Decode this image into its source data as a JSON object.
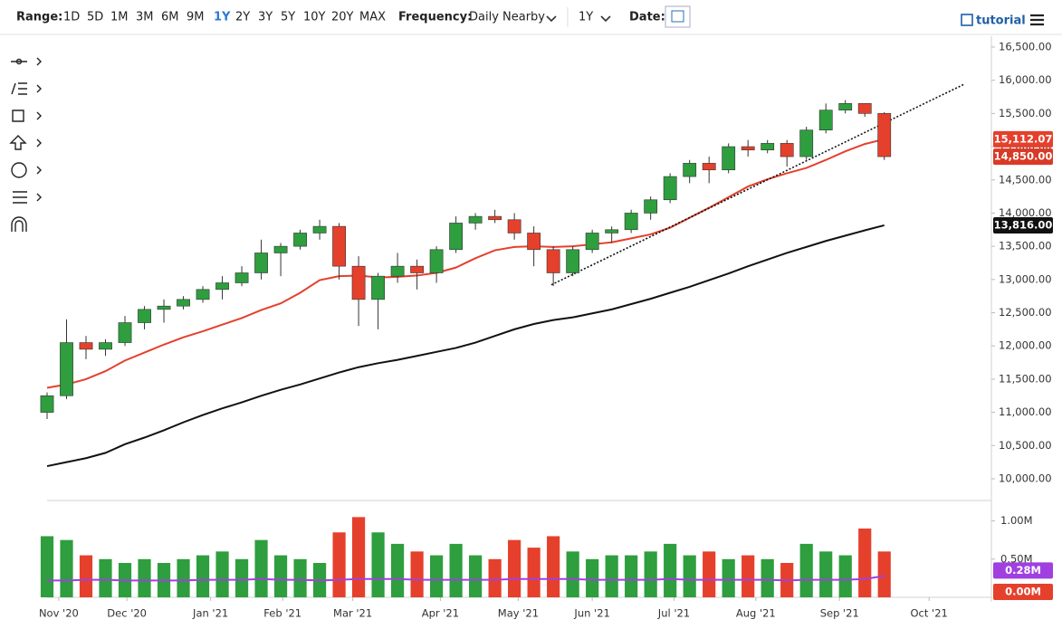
{
  "toolbar": {
    "range_label": "Range:",
    "ranges": [
      "1D",
      "5D",
      "1M",
      "3M",
      "6M",
      "9M",
      "1Y",
      "2Y",
      "3Y",
      "5Y",
      "10Y",
      "20Y",
      "MAX"
    ],
    "active_range": 6,
    "frequency_label": "Frequency:",
    "frequency": "Daily Nearby",
    "period": "1Y",
    "date_label": "Date:",
    "tutorial": "tutorial"
  },
  "chart_data": {
    "type": "candlestick",
    "x": [
      0,
      1,
      2,
      3,
      4,
      5,
      6,
      7,
      8,
      9,
      10,
      11,
      12,
      13,
      14,
      15,
      16,
      17,
      18,
      19,
      20,
      21,
      22,
      23,
      24,
      25,
      26,
      27,
      28,
      29,
      30,
      31,
      32,
      33,
      34,
      35,
      36,
      37,
      38,
      39,
      40,
      41,
      42,
      43
    ],
    "open": [
      11000,
      11250,
      12050,
      11950,
      12050,
      12350,
      12550,
      12600,
      12700,
      12850,
      12950,
      13100,
      13400,
      13500,
      13700,
      13800,
      13200,
      12700,
      13050,
      13200,
      13100,
      13450,
      13850,
      13950,
      13900,
      13700,
      13450,
      13100,
      13450,
      13700,
      13750,
      14000,
      14200,
      14550,
      14750,
      14650,
      15000,
      14950,
      15050,
      14850,
      15250,
      15550,
      15650,
      15500
    ],
    "high": [
      11300,
      12400,
      12150,
      12100,
      12450,
      12600,
      12700,
      12750,
      12900,
      13050,
      13200,
      13600,
      13550,
      13750,
      13900,
      13850,
      13350,
      13100,
      13400,
      13300,
      13500,
      13950,
      14000,
      14050,
      14000,
      13800,
      13500,
      13500,
      13750,
      13800,
      14050,
      14250,
      14600,
      14800,
      14850,
      15050,
      15100,
      15100,
      15100,
      15300,
      15650,
      15700,
      15650,
      15520
    ],
    "low": [
      10900,
      11200,
      11800,
      11850,
      12000,
      12250,
      12350,
      12550,
      12650,
      12700,
      12900,
      13000,
      13050,
      13450,
      13600,
      13000,
      12300,
      12250,
      12950,
      12850,
      12950,
      13400,
      13750,
      13850,
      13600,
      13200,
      12900,
      13050,
      13400,
      13550,
      13700,
      13900,
      14150,
      14450,
      14450,
      14600,
      14850,
      14900,
      14700,
      14800,
      15200,
      15500,
      15450,
      14800
    ],
    "close": [
      11250,
      12050,
      11950,
      12050,
      12350,
      12550,
      12600,
      12700,
      12850,
      12950,
      13100,
      13400,
      13500,
      13700,
      13800,
      13200,
      12700,
      13050,
      13200,
      13100,
      13450,
      13850,
      13950,
      13900,
      13700,
      13450,
      13100,
      13450,
      13700,
      13750,
      14000,
      14200,
      14550,
      14750,
      14650,
      15000,
      14950,
      15050,
      14850,
      15250,
      15550,
      15650,
      15500,
      14850
    ],
    "up_color": "#2e9e3e",
    "down_color": "#e5402c",
    "lines": [
      {
        "color": "#e5402c",
        "values": [
          11370,
          11420,
          11500,
          11620,
          11780,
          11900,
          12020,
          12130,
          12220,
          12320,
          12420,
          12540,
          12640,
          12800,
          12990,
          13050,
          13060,
          13030,
          13040,
          13060,
          13100,
          13180,
          13320,
          13440,
          13490,
          13500,
          13490,
          13500,
          13530,
          13560,
          13620,
          13680,
          13780,
          13930,
          14080,
          14240,
          14400,
          14510,
          14600,
          14680,
          14800,
          14930,
          15040,
          15112
        ]
      },
      {
        "color": "#111111",
        "values": [
          10190,
          10250,
          10310,
          10390,
          10520,
          10620,
          10730,
          10850,
          10960,
          11060,
          11150,
          11250,
          11340,
          11420,
          11510,
          11600,
          11680,
          11740,
          11790,
          11850,
          11910,
          11970,
          12050,
          12150,
          12250,
          12330,
          12390,
          12430,
          12490,
          12550,
          12630,
          12710,
          12800,
          12890,
          12990,
          13090,
          13200,
          13300,
          13400,
          13490,
          13580,
          13660,
          13740,
          13816
        ]
      }
    ],
    "trendline": {
      "x": [
        25.9,
        47.1
      ],
      "y": [
        12920,
        15940
      ]
    },
    "xlim": [
      0,
      48.5
    ],
    "xticks": [
      {
        "value": 0.6,
        "label": "Nov '20"
      },
      {
        "value": 4.1,
        "label": "Dec '20"
      },
      {
        "value": 8.4,
        "label": "Jan '21"
      },
      {
        "value": 12.1,
        "label": "Feb '21"
      },
      {
        "value": 15.7,
        "label": "Mar '21"
      },
      {
        "value": 20.2,
        "label": "Apr '21"
      },
      {
        "value": 24.2,
        "label": "May '21"
      },
      {
        "value": 28.0,
        "label": "Jun '21"
      },
      {
        "value": 32.2,
        "label": "Jul '21"
      },
      {
        "value": 36.4,
        "label": "Aug '21"
      },
      {
        "value": 40.7,
        "label": "Sep '21"
      },
      {
        "value": 45.3,
        "label": "Oct '21"
      }
    ],
    "ylim": [
      9673,
      16595
    ],
    "yticks": [
      {
        "value": 10000,
        "label": "10,000.00"
      },
      {
        "value": 10500,
        "label": "10,500.00"
      },
      {
        "value": 11000,
        "label": "11,000.00"
      },
      {
        "value": 11500,
        "label": "11,500.00"
      },
      {
        "value": 12000,
        "label": "12,000.00"
      },
      {
        "value": 12500,
        "label": "12,500.00"
      },
      {
        "value": 13000,
        "label": "13,000.00"
      },
      {
        "value": 13500,
        "label": "13,500.00"
      },
      {
        "value": 14000,
        "label": "14,000.00"
      },
      {
        "value": 14500,
        "label": "14,500.00"
      },
      {
        "value": 15000,
        "label": "15,000.00"
      },
      {
        "value": 15500,
        "label": "15,500.00"
      },
      {
        "value": 16000,
        "label": "16,000.00"
      },
      {
        "value": 16500,
        "label": "16,500.00"
      }
    ],
    "price_tags": [
      {
        "value": 15112.07,
        "label": "15,112.07",
        "color": "#e5402c"
      },
      {
        "value": 14850,
        "label": "14,850.00",
        "color": "#d93a26"
      },
      {
        "value": 13816,
        "label": "13,816.00",
        "color": "#111111"
      }
    ],
    "volume": {
      "values": [
        0.8,
        0.75,
        0.55,
        0.5,
        0.45,
        0.5,
        0.45,
        0.5,
        0.55,
        0.6,
        0.5,
        0.75,
        0.55,
        0.5,
        0.45,
        0.85,
        1.05,
        0.85,
        0.7,
        0.6,
        0.55,
        0.7,
        0.55,
        0.5,
        0.75,
        0.65,
        0.8,
        0.6,
        0.5,
        0.55,
        0.55,
        0.6,
        0.7,
        0.55,
        0.6,
        0.5,
        0.55,
        0.5,
        0.45,
        0.7,
        0.6,
        0.55,
        0.9,
        0.6
      ],
      "avg_values": [
        0.22,
        0.22,
        0.23,
        0.23,
        0.22,
        0.22,
        0.22,
        0.22,
        0.23,
        0.23,
        0.23,
        0.24,
        0.23,
        0.23,
        0.22,
        0.23,
        0.24,
        0.24,
        0.24,
        0.23,
        0.23,
        0.23,
        0.23,
        0.23,
        0.24,
        0.24,
        0.24,
        0.24,
        0.23,
        0.23,
        0.23,
        0.23,
        0.24,
        0.23,
        0.23,
        0.23,
        0.23,
        0.23,
        0.22,
        0.23,
        0.23,
        0.23,
        0.24,
        0.28
      ],
      "avg_color": "#a040e0",
      "ylim": [
        0,
        1.22
      ],
      "yticks": [
        {
          "value": 0.5,
          "label": "0.50M"
        },
        {
          "value": 1,
          "label": "1.00M"
        }
      ],
      "tags": [
        {
          "value": 0.28,
          "label": "0.28M",
          "color": "#a040e0"
        },
        {
          "value": 0,
          "label": "0.00M",
          "color": "#e5402c"
        }
      ]
    }
  }
}
